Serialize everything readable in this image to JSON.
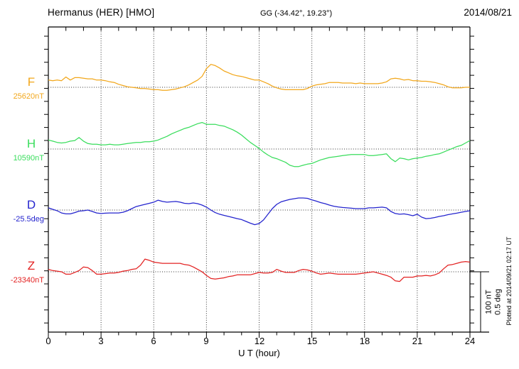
{
  "header": {
    "title": "Hermanus (HER)  [HMO]",
    "coordinates": "GG (-34.42°,  19.23°)",
    "date": "2014/08/21"
  },
  "x_axis": {
    "label": "U T (hour)",
    "ticks": [
      "0",
      "3",
      "6",
      "9",
      "12",
      "15",
      "18",
      "21",
      "24"
    ]
  },
  "scale_bar": {
    "text": "100 nT\n0.5 deg"
  },
  "plotted_at": "Plotted at 2014/09/21 02:17 UT",
  "colors": {
    "F": "#F2A71B",
    "H": "#39DD5C",
    "D": "#2424CE",
    "Z": "#E32222",
    "grid": "#333333",
    "axis": "#000000"
  },
  "traces": [
    {
      "id": "F",
      "label": "F",
      "baseline_label": "25620nT"
    },
    {
      "id": "H",
      "label": "H",
      "baseline_label": "10590nT"
    },
    {
      "id": "D",
      "label": "D",
      "baseline_label": "-25.5deg"
    },
    {
      "id": "Z",
      "label": "Z",
      "baseline_label": "-23340nT"
    }
  ],
  "chart_data": {
    "type": "line",
    "title": "Hermanus (HER) [HMO] magnetogram, 2014/08/21",
    "xlabel": "U T (hour)",
    "xlim": [
      0,
      24
    ],
    "x_tick_step": 3,
    "grid": "dotted vertical every 3 h, dotted horizontal baseline per trace",
    "legend_position": "left margin trace labels",
    "scale": {
      "nT_per_division": 100,
      "deg_per_division": 0.5
    },
    "x_hours": [
      0,
      0.25,
      0.5,
      0.75,
      1,
      1.25,
      1.5,
      1.75,
      2,
      2.25,
      2.5,
      2.75,
      3,
      3.25,
      3.5,
      3.75,
      4,
      4.25,
      4.5,
      4.75,
      5,
      5.25,
      5.5,
      5.75,
      6,
      6.25,
      6.5,
      6.75,
      7,
      7.25,
      7.5,
      7.75,
      8,
      8.25,
      8.5,
      8.75,
      9,
      9.25,
      9.5,
      9.75,
      10,
      10.25,
      10.5,
      10.75,
      11,
      11.25,
      11.5,
      11.75,
      12,
      12.25,
      12.5,
      12.75,
      13,
      13.25,
      13.5,
      13.75,
      14,
      14.25,
      14.5,
      14.75,
      15,
      15.25,
      15.5,
      15.75,
      16,
      16.25,
      16.5,
      16.75,
      17,
      17.25,
      17.5,
      17.75,
      18,
      18.25,
      18.5,
      18.75,
      19,
      19.25,
      19.5,
      19.75,
      20,
      20.25,
      20.5,
      20.75,
      21,
      21.25,
      21.5,
      21.75,
      22,
      22.25,
      22.5,
      22.75,
      23,
      23.25,
      23.5,
      23.75,
      24
    ],
    "series": [
      {
        "name": "F",
        "unit": "nT",
        "baseline_value": 25620,
        "delta": [
          12,
          11,
          12,
          11,
          17,
          12,
          16,
          16,
          15,
          14,
          14,
          12,
          12,
          11,
          9,
          8,
          5,
          3,
          1,
          0,
          -1,
          -2,
          -2,
          -3,
          -4,
          -4,
          -5,
          -5,
          -4,
          -3,
          -1,
          1,
          4,
          8,
          12,
          18,
          31,
          38,
          36,
          32,
          27,
          24,
          21,
          19,
          18,
          16,
          14,
          12,
          12,
          9,
          6,
          2,
          -1,
          -3,
          -4,
          -4,
          -4,
          -4,
          -4,
          -2,
          2,
          4,
          5,
          6,
          8,
          8,
          8,
          7,
          7,
          7,
          6,
          7,
          6,
          6,
          6,
          6,
          7,
          9,
          14,
          15,
          14,
          12,
          13,
          11,
          11,
          10,
          10,
          9,
          8,
          6,
          4,
          1,
          -1,
          -1,
          -1,
          0,
          0
        ]
      },
      {
        "name": "H",
        "unit": "nT",
        "baseline_value": 10590,
        "delta": [
          15,
          13,
          11,
          10,
          11,
          13,
          14,
          19,
          13,
          9,
          8,
          8,
          7,
          7,
          8,
          7,
          7,
          8,
          9,
          10,
          11,
          11,
          12,
          12,
          13,
          15,
          18,
          21,
          25,
          28,
          31,
          34,
          36,
          39,
          42,
          44,
          41,
          41,
          41,
          39,
          38,
          35,
          32,
          28,
          23,
          17,
          11,
          6,
          1,
          -5,
          -10,
          -14,
          -16,
          -19,
          -22,
          -27,
          -29,
          -29,
          -27,
          -25,
          -24,
          -21,
          -18,
          -16,
          -14,
          -13,
          -12,
          -11,
          -10,
          -9,
          -9,
          -9,
          -9,
          -11,
          -11,
          -10,
          -9,
          -8,
          -16,
          -21,
          -15,
          -16,
          -18,
          -16,
          -15,
          -14,
          -12,
          -11,
          -9,
          -8,
          -5,
          -2,
          1,
          4,
          6,
          10,
          14
        ]
      },
      {
        "name": "D",
        "unit": "deg",
        "baseline_value": -25.5,
        "delta": [
          0.018,
          0.006,
          -0.006,
          -0.024,
          -0.032,
          -0.032,
          -0.021,
          -0.009,
          -0.006,
          0.0,
          -0.012,
          -0.024,
          -0.029,
          -0.026,
          -0.024,
          -0.024,
          -0.024,
          -0.018,
          -0.006,
          0.012,
          0.029,
          0.038,
          0.047,
          0.056,
          0.065,
          0.082,
          0.071,
          0.065,
          0.068,
          0.071,
          0.065,
          0.056,
          0.053,
          0.059,
          0.053,
          0.041,
          0.024,
          0.0,
          -0.021,
          -0.035,
          -0.044,
          -0.053,
          -0.062,
          -0.071,
          -0.079,
          -0.094,
          -0.109,
          -0.121,
          -0.112,
          -0.082,
          -0.035,
          0.012,
          0.047,
          0.068,
          0.079,
          0.088,
          0.094,
          0.1,
          0.1,
          0.097,
          0.085,
          0.074,
          0.062,
          0.053,
          0.041,
          0.032,
          0.026,
          0.021,
          0.018,
          0.015,
          0.012,
          0.012,
          0.012,
          0.018,
          0.018,
          0.021,
          0.024,
          0.018,
          -0.012,
          -0.029,
          -0.035,
          -0.032,
          -0.038,
          -0.047,
          -0.035,
          -0.059,
          -0.071,
          -0.068,
          -0.062,
          -0.053,
          -0.047,
          -0.038,
          -0.032,
          -0.026,
          -0.018,
          -0.012,
          -0.006
        ]
      },
      {
        "name": "Z",
        "unit": "nT",
        "baseline_value": -23340,
        "delta": [
          4,
          2,
          1,
          0,
          -4,
          -4,
          -1,
          2,
          8,
          7,
          2,
          -4,
          -4,
          -3,
          -2,
          -2,
          -1,
          1,
          2,
          4,
          5,
          11,
          21,
          19,
          16,
          15,
          14,
          14,
          14,
          14,
          14,
          12,
          11,
          8,
          4,
          0,
          -6,
          -11,
          -12,
          -11,
          -10,
          -8,
          -7,
          -5,
          -5,
          -5,
          -5,
          -3,
          -1,
          -2,
          -2,
          -1,
          4,
          1,
          -1,
          -1,
          -1,
          2,
          4,
          3,
          1,
          -2,
          -4,
          -3,
          -2,
          -3,
          -4,
          -4,
          -4,
          -4,
          -4,
          -3,
          -2,
          -1,
          0,
          -2,
          -4,
          -6,
          -9,
          -15,
          -16,
          -9,
          -9,
          -9,
          -7,
          -7,
          -6,
          -7,
          -5,
          -2,
          5,
          11,
          12,
          14,
          16,
          17,
          16
        ]
      }
    ]
  }
}
